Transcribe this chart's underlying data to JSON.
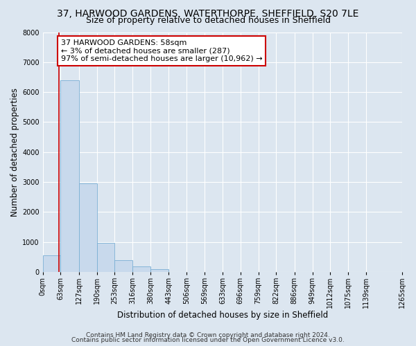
{
  "title": "37, HARWOOD GARDENS, WATERTHORPE, SHEFFIELD, S20 7LE",
  "subtitle": "Size of property relative to detached houses in Sheffield",
  "xlabel": "Distribution of detached houses by size in Sheffield",
  "ylabel": "Number of detached properties",
  "bar_values": [
    550,
    6400,
    2950,
    970,
    380,
    175,
    100,
    0,
    0,
    0,
    0,
    0,
    0,
    0,
    0,
    0,
    0,
    0,
    0
  ],
  "bin_edges": [
    0,
    63,
    127,
    190,
    253,
    316,
    380,
    443,
    506,
    569,
    633,
    696,
    759,
    822,
    886,
    949,
    1012,
    1075,
    1139,
    1265
  ],
  "tick_labels": [
    "0sqm",
    "63sqm",
    "127sqm",
    "190sqm",
    "253sqm",
    "316sqm",
    "380sqm",
    "443sqm",
    "506sqm",
    "569sqm",
    "633sqm",
    "696sqm",
    "759sqm",
    "822sqm",
    "886sqm",
    "949sqm",
    "1012sqm",
    "1075sqm",
    "1139sqm",
    "1265sqm"
  ],
  "ylim": [
    0,
    8000
  ],
  "yticks": [
    0,
    1000,
    2000,
    3000,
    4000,
    5000,
    6000,
    7000,
    8000
  ],
  "bar_color": "#c8d9ec",
  "bar_edge_color": "#7aafd4",
  "background_color": "#dce6f0",
  "plot_bg_color": "#dce6f0",
  "grid_color": "#ffffff",
  "property_line_x": 58,
  "annotation_title": "37 HARWOOD GARDENS: 58sqm",
  "annotation_line1": "← 3% of detached houses are smaller (287)",
  "annotation_line2": "97% of semi-detached houses are larger (10,962) →",
  "annotation_box_color": "#ffffff",
  "annotation_box_edge": "#cc0000",
  "property_line_color": "#cc0000",
  "footer1": "Contains HM Land Registry data © Crown copyright and database right 2024.",
  "footer2": "Contains public sector information licensed under the Open Government Licence v3.0.",
  "title_fontsize": 10,
  "subtitle_fontsize": 9,
  "axis_label_fontsize": 8.5,
  "tick_fontsize": 7,
  "annotation_fontsize": 8,
  "footer_fontsize": 6.5
}
